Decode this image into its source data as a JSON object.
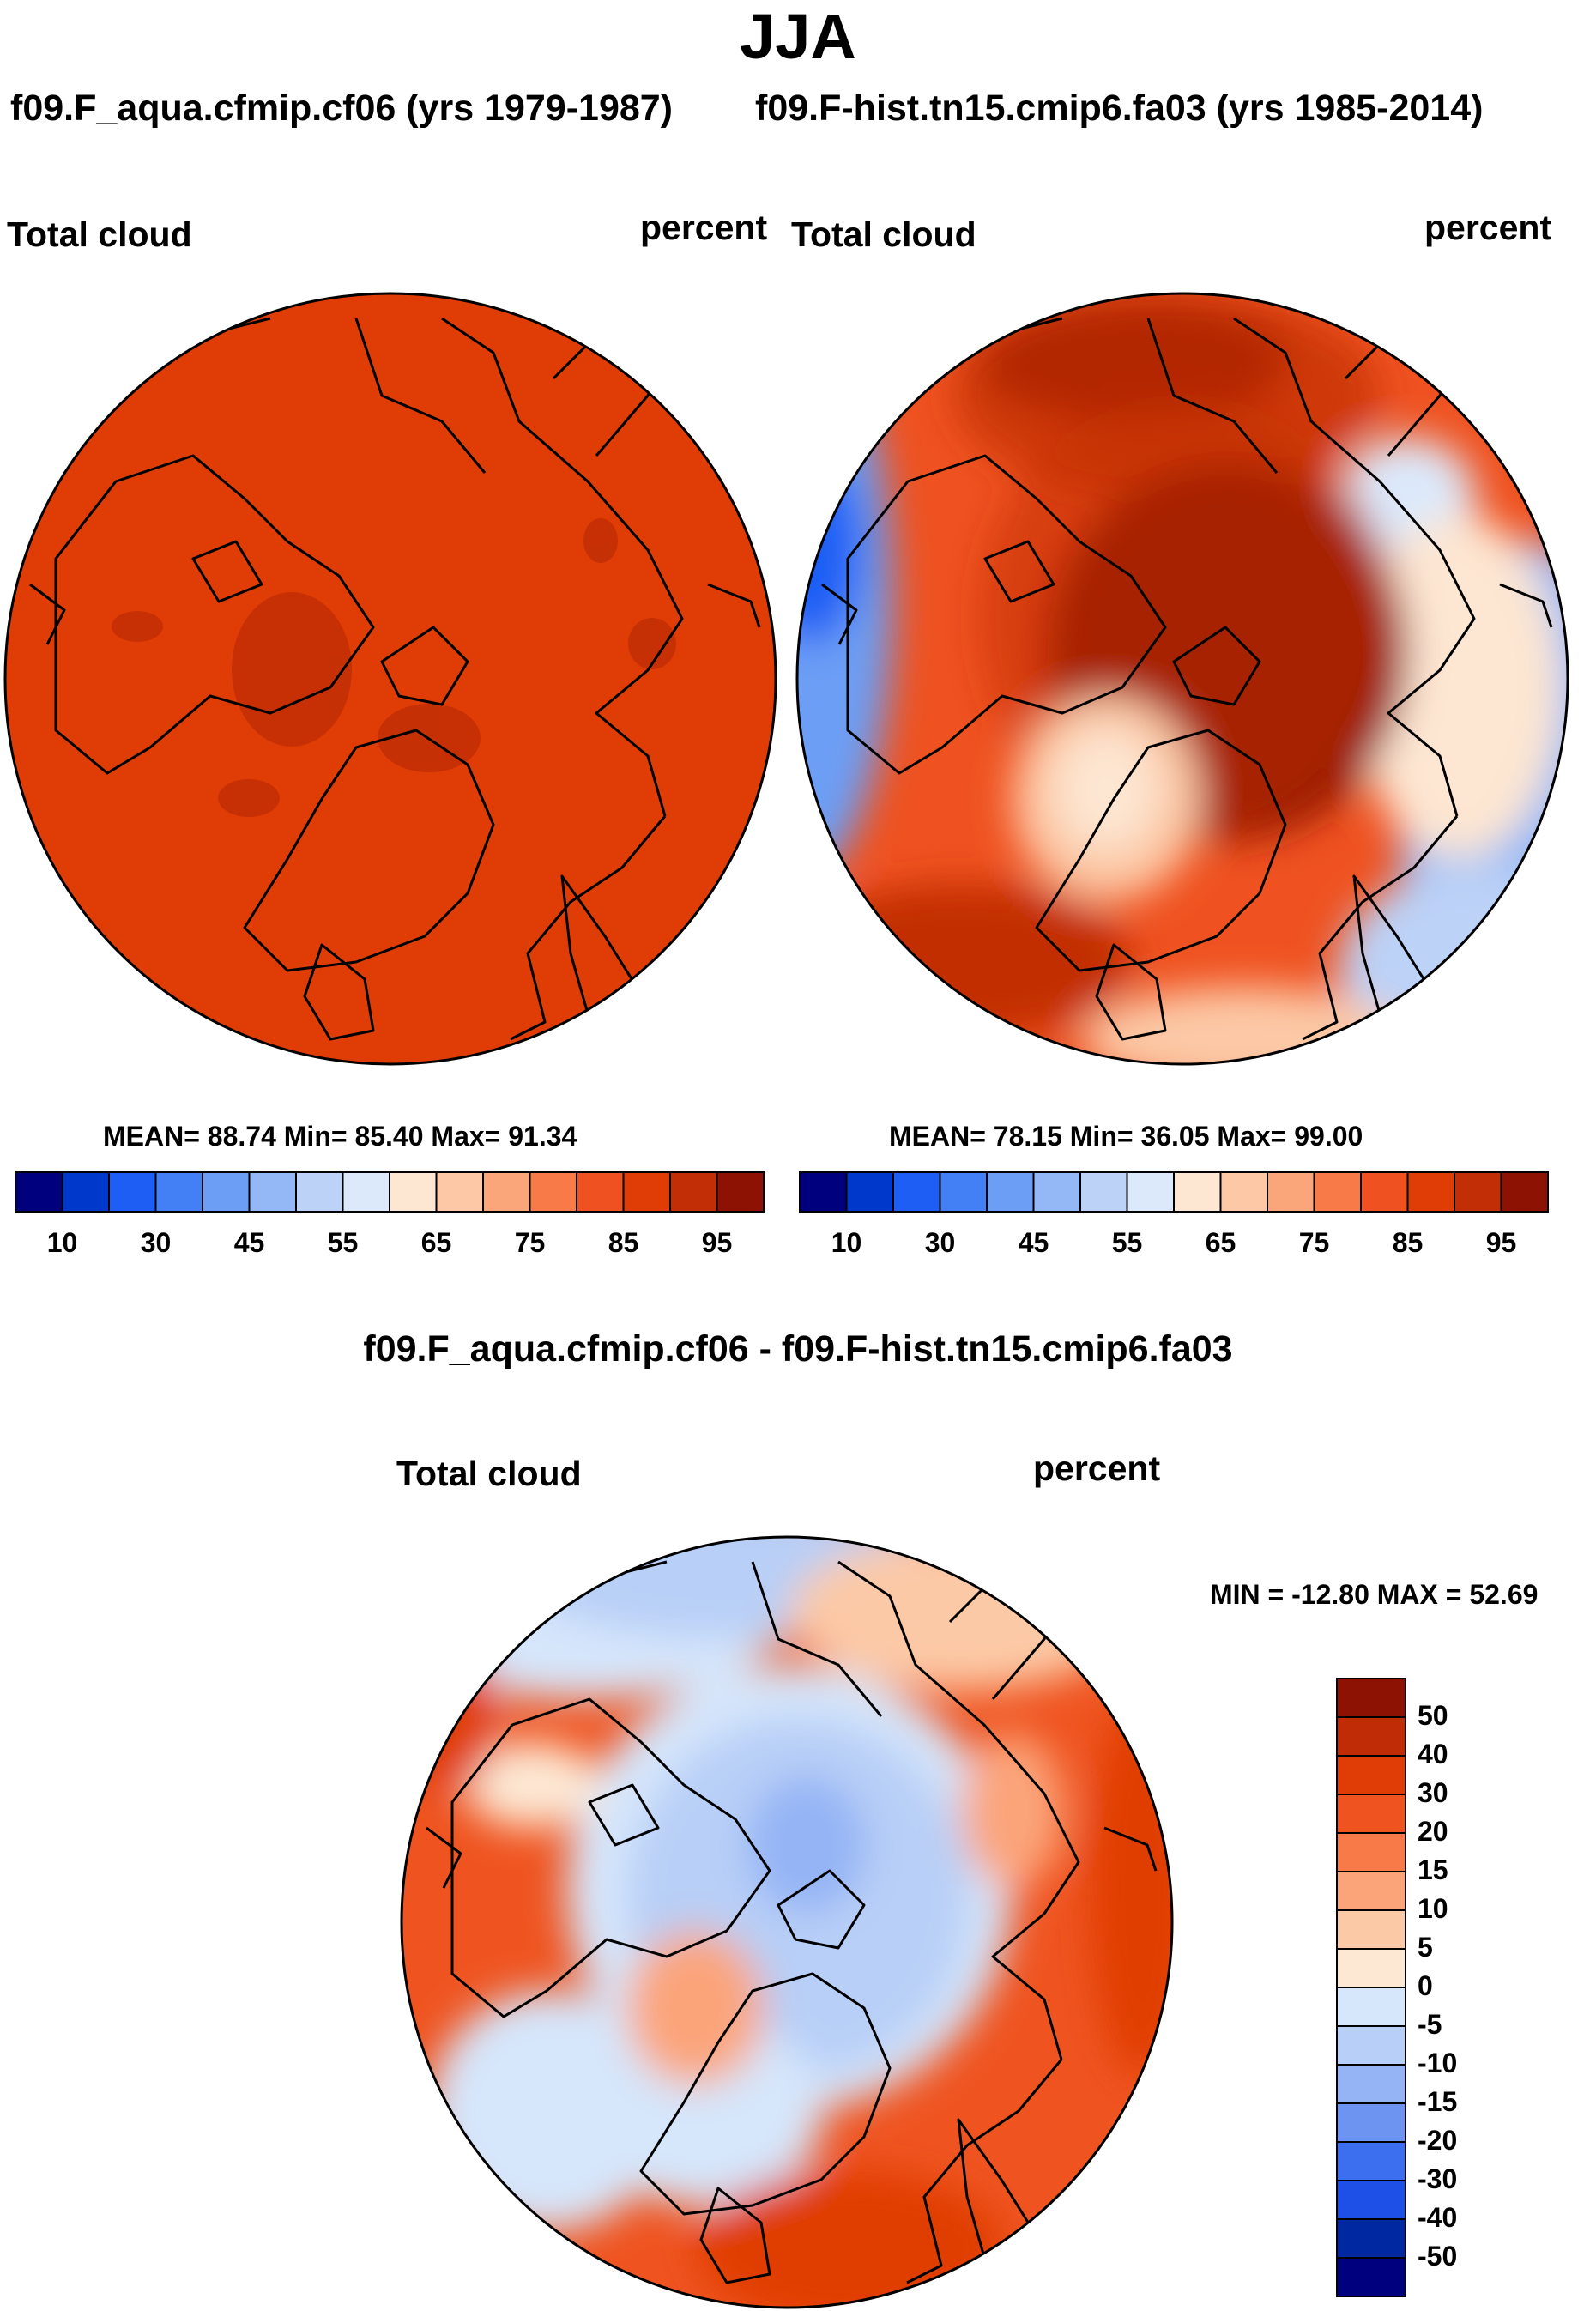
{
  "title": "JJA",
  "case1_title": "f09.F_aqua.cfmip.cf06 (yrs 1979-1987)",
  "case2_title": "f09.F-hist.tn15.cmip6.fa03 (yrs 1985-2014)",
  "diff_title": "f09.F_aqua.cfmip.cf06 - f09.F-hist.tn15.cmip6.fa03",
  "variable": "Total cloud",
  "units": "percent",
  "panel1_stats": "MEAN=  88.74  Min=  85.40  Max=  91.34",
  "panel2_stats": "MEAN=  78.15  Min=  36.05  Max=  99.00",
  "diff_stats": "MIN = -12.80 MAX =  52.69",
  "colors": {
    "abs_scale": [
      "#00007f",
      "#0038cc",
      "#1e5ef5",
      "#4480f5",
      "#6c9ef5",
      "#94b8f5",
      "#bcd2f7",
      "#dce9fb",
      "#fde6d2",
      "#fcc8a5",
      "#fba57a",
      "#f77a48",
      "#ef5220",
      "#e03c06",
      "#c22e05",
      "#8d1204"
    ],
    "diff_scale": [
      "#00007f",
      "#0028a0",
      "#1e50e8",
      "#3c6ef0",
      "#6c94f0",
      "#94b4f5",
      "#b8cff7",
      "#d6e6fb",
      "#fde8d4",
      "#fcc9a6",
      "#fba47a",
      "#f77a48",
      "#ef5420",
      "#e03c06",
      "#c02c05",
      "#8d1204"
    ],
    "land_outline": "#000000"
  },
  "chart_data": [
    {
      "type": "heatmap",
      "projection": "polar-stereographic (north pole)",
      "title": "f09.F_aqua.cfmip.cf06 (yrs 1979-1987)",
      "variable": "Total cloud",
      "units": "percent",
      "stats": {
        "mean": 88.74,
        "min": 85.4,
        "max": 91.34
      },
      "regions": [
        {
          "region": "background / most of domain",
          "value": 88
        },
        {
          "region": "Canadian Archipelago, Greenland, central Arctic, N Pacific patch",
          "value": 92
        }
      ],
      "colorbar": {
        "levels": [
          10,
          20,
          30,
          40,
          45,
          50,
          55,
          60,
          65,
          70,
          75,
          80,
          85,
          90,
          95
        ],
        "tick_labels": [
          "10",
          "30",
          "45",
          "55",
          "65",
          "75",
          "85",
          "95"
        ]
      }
    },
    {
      "type": "heatmap",
      "projection": "polar-stereographic (north pole)",
      "title": "f09.F-hist.tn15.cmip6.fa03 (yrs 1985-2014)",
      "variable": "Total cloud",
      "units": "percent",
      "stats": {
        "mean": 78.15,
        "min": 36.05,
        "max": 99.0
      },
      "regions": [
        {
          "region": "background / mid-latitudes",
          "value": 80
        },
        {
          "region": "central Arctic Ocean",
          "value": 96
        },
        {
          "region": "Greenland interior",
          "value": 58
        },
        {
          "region": "N Atlantic / N Pacific storm tracks",
          "value": 88
        },
        {
          "region": "lower-right land edge (Europe/Asia south)",
          "value": 55
        },
        {
          "region": "left edge (N America south)",
          "value": 45
        }
      ],
      "colorbar": {
        "levels": [
          10,
          20,
          30,
          40,
          45,
          50,
          55,
          60,
          65,
          70,
          75,
          80,
          85,
          90,
          95
        ],
        "tick_labels": [
          "10",
          "30",
          "45",
          "55",
          "65",
          "75",
          "85",
          "95"
        ]
      }
    },
    {
      "type": "heatmap",
      "projection": "polar-stereographic (north pole)",
      "title": "f09.F_aqua.cfmip.cf06 - f09.F-hist.tn15.cmip6.fa03",
      "variable": "Total cloud",
      "units": "percent",
      "stats": {
        "min": -12.8,
        "max": 52.69
      },
      "regions": [
        {
          "region": "background / mid-latitudes",
          "value": 25
        },
        {
          "region": "central Arctic Ocean",
          "value": -6
        },
        {
          "region": "high-latitude ring",
          "value": 2
        },
        {
          "region": "Greenland interior",
          "value": 18
        },
        {
          "region": "subtropical margins",
          "value": 35
        }
      ],
      "colorbar": {
        "orientation": "vertical",
        "levels": [
          -50,
          -40,
          -30,
          -20,
          -15,
          -10,
          -5,
          0,
          5,
          10,
          15,
          20,
          30,
          40,
          50
        ],
        "tick_labels": [
          "50",
          "40",
          "30",
          "20",
          "15",
          "10",
          "5",
          "0",
          "-5",
          "-10",
          "-15",
          "-20",
          "-30",
          "-40",
          "-50"
        ]
      }
    }
  ]
}
